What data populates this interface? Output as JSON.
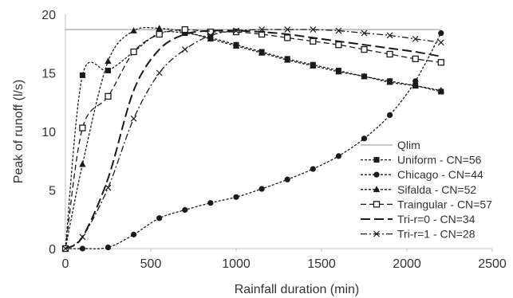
{
  "chart_data": {
    "type": "line",
    "title": "",
    "xlabel": "Rainfall duration (min)",
    "ylabel": "Peak of runoff (l/s)",
    "xlim": [
      0,
      2500
    ],
    "ylim": [
      0,
      20
    ],
    "xticks": [
      "0",
      "500",
      "1000",
      "1500",
      "2000",
      "2500"
    ],
    "yticks": [
      "0",
      "5",
      "10",
      "15",
      "20"
    ],
    "grid": false,
    "legend_position": "bottom-right",
    "series": [
      {
        "name": "Qlim",
        "marker": "none",
        "dash": "solid",
        "color": "#a6a6a6",
        "x": [
          0,
          2200
        ],
        "y": [
          18.7,
          18.7
        ]
      },
      {
        "name": "Uniform - CN=56",
        "marker": "square",
        "dash": "short",
        "color": "#1a1a1a",
        "x": [
          0,
          100,
          250,
          400,
          550,
          700,
          850,
          1000,
          1150,
          1300,
          1450,
          1600,
          1750,
          1900,
          2050,
          2200
        ],
        "y": [
          0,
          14.8,
          15.2,
          16.8,
          18.4,
          18.4,
          18.0,
          17.4,
          16.8,
          16.2,
          15.7,
          15.2,
          14.7,
          14.3,
          13.9,
          13.4
        ]
      },
      {
        "name": "Chicago - CN=44",
        "marker": "circle",
        "dash": "short",
        "color": "#1a1a1a",
        "x": [
          0,
          100,
          250,
          400,
          550,
          700,
          850,
          1000,
          1150,
          1300,
          1450,
          1600,
          1750,
          1900,
          2050,
          2200
        ],
        "y": [
          0,
          0,
          0.1,
          1.2,
          2.6,
          3.3,
          3.9,
          4.4,
          5.1,
          5.9,
          6.8,
          7.9,
          9.4,
          11.4,
          14.3,
          18.4
        ]
      },
      {
        "name": "Sifalda - CN=52",
        "marker": "triangle",
        "dash": "short",
        "color": "#1a1a1a",
        "x": [
          0,
          100,
          250,
          400,
          550,
          700,
          850,
          1000,
          1150,
          1300,
          1450,
          1600,
          1750,
          1900,
          2050,
          2200
        ],
        "y": [
          0,
          7.2,
          16.0,
          18.6,
          18.8,
          18.5,
          17.9,
          17.3,
          16.7,
          16.1,
          15.6,
          15.1,
          14.7,
          14.2,
          13.9,
          13.5
        ]
      },
      {
        "name": "Traingular - CN=57",
        "marker": "square-open",
        "dash": "dash",
        "color": "#1a1a1a",
        "x": [
          0,
          100,
          250,
          400,
          550,
          700,
          850,
          1000,
          1150,
          1300,
          1450,
          1600,
          1750,
          1900,
          2050,
          2200
        ],
        "y": [
          0,
          10.3,
          13.0,
          16.8,
          18.3,
          18.7,
          18.5,
          18.5,
          18.3,
          18.0,
          17.7,
          17.4,
          17.0,
          16.6,
          16.2,
          15.9
        ]
      },
      {
        "name": "Tri-r=0 - CN=34",
        "marker": "none",
        "dash": "long",
        "color": "#1a1a1a",
        "x": [
          0,
          100,
          250,
          400,
          550,
          700,
          850,
          1000,
          1150,
          1300,
          1450,
          1600,
          1750,
          1900,
          2050,
          2200
        ],
        "y": [
          0,
          1.0,
          6.0,
          13.5,
          17.0,
          18.3,
          18.6,
          18.6,
          18.5,
          18.3,
          18.0,
          17.7,
          17.4,
          17.1,
          16.8,
          16.4
        ]
      },
      {
        "name": "Tri-r=1 - CN=28",
        "marker": "x",
        "dash": "dashdot",
        "color": "#1a1a1a",
        "x": [
          0,
          100,
          250,
          400,
          550,
          700,
          850,
          1000,
          1150,
          1300,
          1450,
          1600,
          1750,
          1900,
          2050,
          2200
        ],
        "y": [
          0,
          1.0,
          5.2,
          11.1,
          15.0,
          17.0,
          18.2,
          18.6,
          18.7,
          18.7,
          18.7,
          18.6,
          18.4,
          18.2,
          17.9,
          17.6
        ]
      }
    ]
  }
}
